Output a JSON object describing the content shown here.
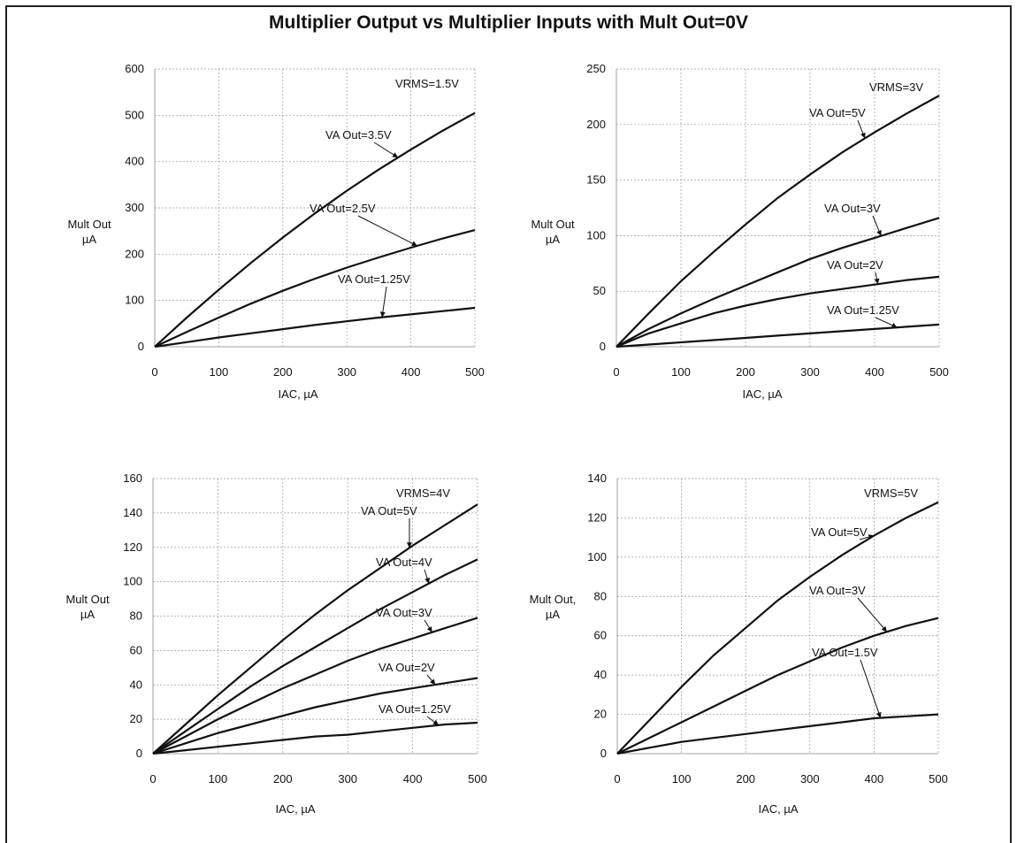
{
  "title": "Multiplier Output vs Multiplier Inputs with Mult Out=0V",
  "chart_data": [
    {
      "type": "line",
      "title": "",
      "xlabel": "IAC, µA",
      "ylabel": "Mult Out µA",
      "xlim": [
        0,
        500
      ],
      "ylim": [
        0,
        600
      ],
      "xticks": [
        0,
        100,
        200,
        300,
        400,
        500
      ],
      "yticks": [
        0,
        100,
        200,
        300,
        400,
        500,
        600
      ],
      "grid": true,
      "note": "VRMS=1.5V",
      "x": [
        0,
        50,
        100,
        150,
        200,
        250,
        300,
        350,
        400,
        450,
        500
      ],
      "series": [
        {
          "name": "VA Out=3.5V",
          "values": [
            0,
            63,
            123,
            181,
            236,
            288,
            337,
            383,
            426,
            467,
            505
          ]
        },
        {
          "name": "VA Out=2.5V",
          "values": [
            0,
            32,
            63,
            93,
            121,
            147,
            171,
            193,
            214,
            234,
            252
          ]
        },
        {
          "name": "VA Out=1.25V",
          "values": [
            0,
            10,
            20,
            29,
            38,
            47,
            55,
            63,
            70,
            77,
            84
          ]
        }
      ]
    },
    {
      "type": "line",
      "title": "",
      "xlabel": "IAC, µA",
      "ylabel": "Mult Out µA",
      "xlim": [
        0,
        500
      ],
      "ylim": [
        0,
        250
      ],
      "xticks": [
        0,
        100,
        200,
        300,
        400,
        500
      ],
      "yticks": [
        0,
        50,
        100,
        150,
        200,
        250
      ],
      "grid": true,
      "note": "VRMS=3V",
      "x": [
        0,
        50,
        100,
        150,
        200,
        250,
        300,
        350,
        400,
        450,
        500
      ],
      "series": [
        {
          "name": "VA Out=5V",
          "values": [
            0,
            30,
            59,
            85,
            110,
            134,
            155,
            175,
            193,
            210,
            226
          ]
        },
        {
          "name": "VA Out=3V",
          "values": [
            0,
            16,
            30,
            43,
            55,
            67,
            79,
            89,
            98,
            107,
            116
          ]
        },
        {
          "name": "VA Out=2V",
          "values": [
            0,
            12,
            21,
            30,
            37,
            43,
            48,
            52,
            56,
            60,
            63
          ]
        },
        {
          "name": "VA Out=1.25V",
          "values": [
            0,
            2,
            4,
            6,
            8,
            10,
            12,
            14,
            16,
            18,
            20
          ]
        }
      ]
    },
    {
      "type": "line",
      "title": "",
      "xlabel": "IAC, µA",
      "ylabel": "Mult Out µA",
      "xlim": [
        0,
        500
      ],
      "ylim": [
        0,
        160
      ],
      "xticks": [
        0,
        100,
        200,
        300,
        400,
        500
      ],
      "yticks": [
        0,
        20,
        40,
        60,
        80,
        100,
        120,
        140,
        160
      ],
      "grid": true,
      "note": "VRMS=4V",
      "x": [
        0,
        50,
        100,
        150,
        200,
        250,
        300,
        350,
        400,
        450,
        500
      ],
      "series": [
        {
          "name": "VA Out=5V",
          "values": [
            0,
            17,
            34,
            50,
            66,
            81,
            95,
            108,
            121,
            133,
            145
          ]
        },
        {
          "name": "VA Out=4V",
          "values": [
            0,
            13,
            26,
            39,
            51,
            62,
            73,
            84,
            94,
            104,
            113
          ]
        },
        {
          "name": "VA Out=3V",
          "values": [
            0,
            10,
            20,
            29,
            38,
            46,
            54,
            61,
            67,
            73,
            79
          ]
        },
        {
          "name": "VA Out=2V",
          "values": [
            0,
            6,
            12,
            17,
            22,
            27,
            31,
            35,
            38,
            41,
            44
          ]
        },
        {
          "name": "VA Out=1.25V",
          "values": [
            0,
            2,
            4,
            6,
            8,
            10,
            11,
            13,
            15,
            17,
            18
          ]
        }
      ]
    },
    {
      "type": "line",
      "title": "",
      "xlabel": "IAC, µA",
      "ylabel": "Mult Out, µA",
      "xlim": [
        0,
        500
      ],
      "ylim": [
        0,
        140
      ],
      "xticks": [
        0,
        100,
        200,
        300,
        400,
        500
      ],
      "yticks": [
        0,
        20,
        40,
        60,
        80,
        100,
        120,
        140
      ],
      "grid": true,
      "note": "VRMS=5V",
      "x": [
        0,
        50,
        100,
        150,
        200,
        250,
        300,
        350,
        400,
        450,
        500
      ],
      "series": [
        {
          "name": "VA Out=5V",
          "values": [
            0,
            17,
            34,
            50,
            64,
            78,
            90,
            101,
            111,
            120,
            128
          ]
        },
        {
          "name": "VA Out=3V",
          "values": [
            0,
            8,
            16,
            24,
            32,
            40,
            47,
            54,
            60,
            65,
            69
          ]
        },
        {
          "name": "VA Out=1.5V",
          "values": [
            0,
            3,
            6,
            8,
            10,
            12,
            14,
            16,
            18,
            19,
            20
          ]
        }
      ]
    }
  ]
}
